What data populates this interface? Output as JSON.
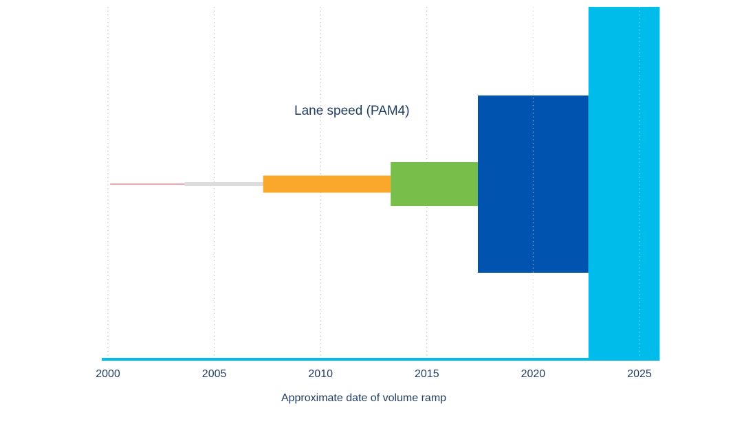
{
  "chart_data": {
    "type": "bar",
    "annotation": "Lane speed (PAM4)",
    "xlabel": "Approximate date of volume ramp",
    "x_ticks": [
      2000,
      2005,
      2010,
      2015,
      2020,
      2025
    ],
    "xlim": [
      1999.6,
      2025.95
    ],
    "y_grid": "dotted vertical gridlines at each x tick",
    "bars": [
      {
        "x_start": 2000.1,
        "x_end": 2006.3,
        "height": 2,
        "color": "#f4a7ab"
      },
      {
        "x_start": 2003.6,
        "x_end": 2008.8,
        "height": 6,
        "color": "#dcdcdc"
      },
      {
        "x_start": 2007.3,
        "x_end": 2013.3,
        "height": 25,
        "color": "#f9a82b"
      },
      {
        "x_start": 2013.3,
        "x_end": 2018.2,
        "height": 64,
        "color": "#78be4a"
      },
      {
        "x_start": 2017.4,
        "x_end": 2022.6,
        "height": 258,
        "color": "#0054b0"
      },
      {
        "x_start": 2022.6,
        "x_end": 2025.95,
        "height": 525,
        "color": "#00bceb"
      }
    ]
  },
  "colors": {
    "axis": "#00bceb",
    "grid": "#b8b8b8",
    "text": "#1e3b5e"
  }
}
